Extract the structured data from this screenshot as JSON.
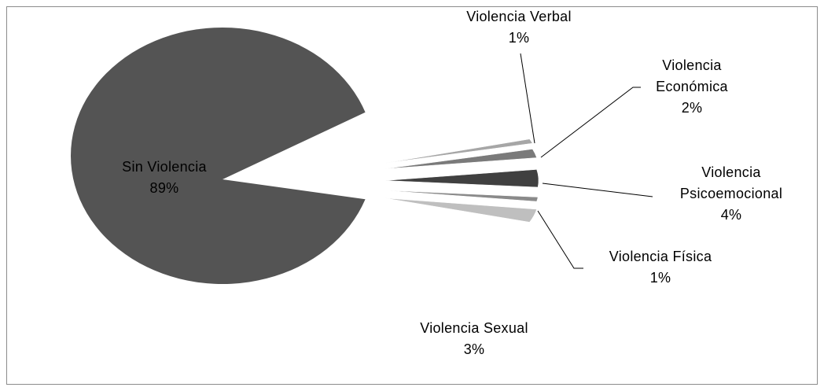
{
  "chart_data": {
    "type": "pie",
    "categories": [
      "Sin Violencia",
      "Violencia Verbal",
      "Violencia Económica",
      "Violencia Psicoemocional",
      "Violencia Física",
      "Violencia Sexual"
    ],
    "values": [
      89,
      1,
      2,
      4,
      1,
      3
    ],
    "value_labels": [
      "89%",
      "1%",
      "2%",
      "4%",
      "1%",
      "3%"
    ],
    "colors": [
      "#545454",
      "#a6a6a6",
      "#7a7a7a",
      "#404040",
      "#8a8a8a",
      "#bfbfbf"
    ]
  }
}
